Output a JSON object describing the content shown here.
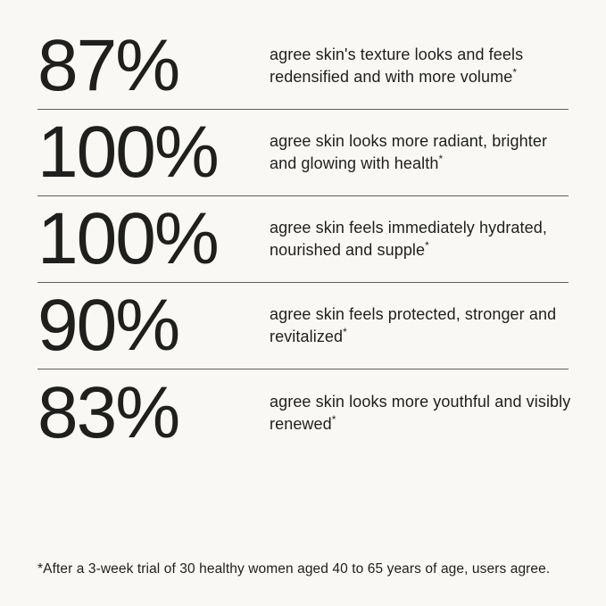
{
  "theme": {
    "background": "#f9f8f4",
    "text": "#1f1f1e",
    "divider": "#606060"
  },
  "stats": [
    {
      "percent": "87%",
      "line1": "agree skin's texture looks and feels",
      "line2": "redensified and with more volume",
      "marker": "*"
    },
    {
      "percent": "100%",
      "line1": "agree skin looks more radiant, brighter",
      "line2": "and glowing with health",
      "marker": "*"
    },
    {
      "percent": "100%",
      "line1": "agree skin feels immediately hydrated,",
      "line2": "nourished and supple",
      "marker": "*"
    },
    {
      "percent": "90%",
      "line1": "agree skin feels protected, stronger and",
      "line2": "revitalized",
      "marker": "*"
    },
    {
      "percent": "83%",
      "line1": "agree skin looks more youthful and visibly",
      "line2": "renewed",
      "marker": "*"
    }
  ],
  "footnote": "*After a 3-week trial of 30 healthy women aged 40 to 65 years of age, users agree."
}
